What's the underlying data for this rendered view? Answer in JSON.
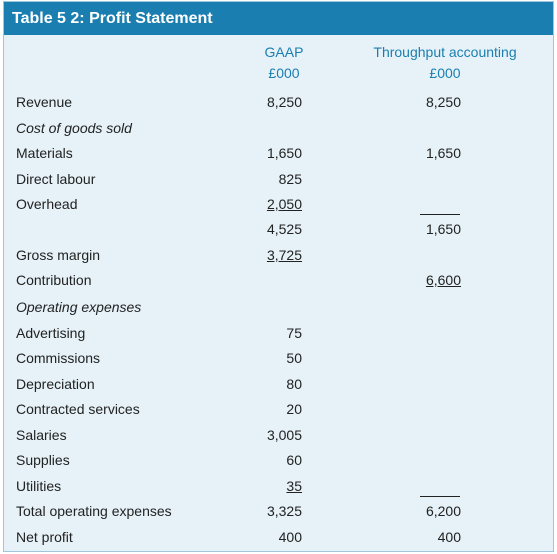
{
  "title": "Table 5 2: Profit Statement",
  "columns": {
    "gaap": {
      "line1": "GAAP",
      "line2": "£000"
    },
    "tp": {
      "line1": "Throughput accounting",
      "line2": "£000"
    }
  },
  "rows": [
    {
      "label": "Revenue",
      "italic": false,
      "gaap": "8,250",
      "tp": "8,250",
      "gaap_ul": false,
      "tp_ul": false
    },
    {
      "label": "Cost of goods sold",
      "italic": true,
      "gaap": "",
      "tp": "",
      "gaap_ul": false,
      "tp_ul": false
    },
    {
      "label": "Materials",
      "italic": false,
      "gaap": "1,650",
      "tp": "1,650",
      "gaap_ul": false,
      "tp_ul": false
    },
    {
      "label": "Direct labour",
      "italic": false,
      "gaap": "825",
      "tp": "",
      "gaap_ul": false,
      "tp_ul": false
    },
    {
      "label": "Overhead",
      "italic": false,
      "gaap": "2,050",
      "tp": "",
      "gaap_ul": true,
      "tp_ul": false
    },
    {
      "label": "",
      "italic": false,
      "gaap": "4,525",
      "tp": "1,650",
      "gaap_ul": false,
      "tp_ul": false
    },
    {
      "label": "Gross margin",
      "italic": false,
      "gaap": "3,725",
      "tp": "",
      "gaap_ul": true,
      "tp_ul": false
    },
    {
      "label": "Contribution",
      "italic": false,
      "gaap": "",
      "tp": "6,600",
      "gaap_ul": false,
      "tp_ul": true
    },
    {
      "label": "Operating expenses",
      "italic": true,
      "gaap": "",
      "tp": "",
      "gaap_ul": false,
      "tp_ul": false
    },
    {
      "label": "Advertising",
      "italic": false,
      "gaap": "75",
      "tp": "",
      "gaap_ul": false,
      "tp_ul": false
    },
    {
      "label": "Commissions",
      "italic": false,
      "gaap": "50",
      "tp": "",
      "gaap_ul": false,
      "tp_ul": false
    },
    {
      "label": "Depreciation",
      "italic": false,
      "gaap": "80",
      "tp": "",
      "gaap_ul": false,
      "tp_ul": false
    },
    {
      "label": "Contracted services",
      "italic": false,
      "gaap": "20",
      "tp": "",
      "gaap_ul": false,
      "tp_ul": false
    },
    {
      "label": "Salaries",
      "italic": false,
      "gaap": "3,005",
      "tp": "",
      "gaap_ul": false,
      "tp_ul": false
    },
    {
      "label": "Supplies",
      "italic": false,
      "gaap": "60",
      "tp": "",
      "gaap_ul": false,
      "tp_ul": false
    },
    {
      "label": "Utilities",
      "italic": false,
      "gaap": "35",
      "tp": "",
      "gaap_ul": true,
      "tp_ul": false
    },
    {
      "label": "Total operating expenses",
      "italic": false,
      "gaap": "3,325",
      "tp": "6,200",
      "gaap_ul": false,
      "tp_ul": false
    },
    {
      "label": "Net profit",
      "italic": false,
      "gaap": "400",
      "tp": "400",
      "gaap_ul": false,
      "tp_ul": false
    }
  ]
}
